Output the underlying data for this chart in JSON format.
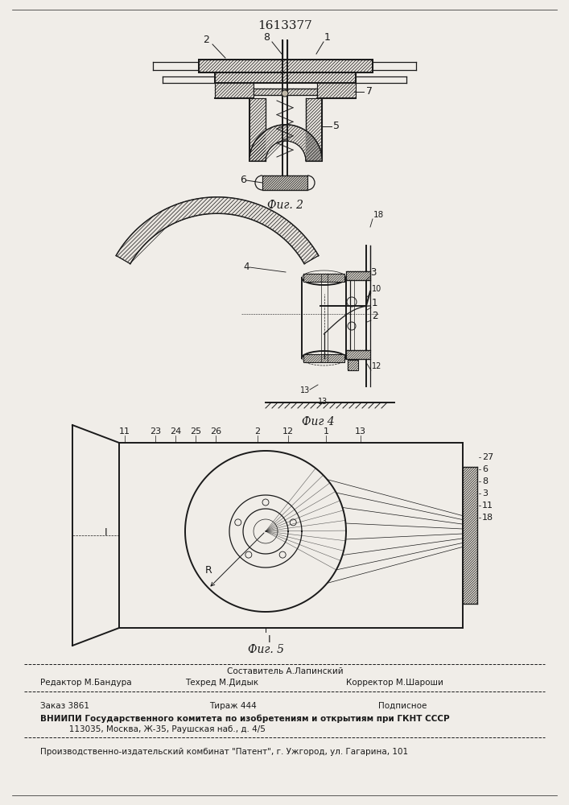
{
  "patent_number": "1613377",
  "fig2_label": "Фиг. 2",
  "fig4_label": "Фиг 4",
  "fig5_label": "Фиг. 5",
  "bg_color": "#f0ede8",
  "line_color": "#1a1a1a",
  "footer_sestavitel": "Составитель А.Лапинский",
  "footer_row1_left": "Редактор М.Бандура",
  "footer_row1_mid": "Техред М.Дидык",
  "footer_row1_right": "Корректор М.Шароши",
  "footer_zakaz": "Заказ 3861",
  "footer_tirazh": "Тираж 444",
  "footer_podpisnoe": "Подписное",
  "footer_vniipи": "ВНИИПИ Государственного комитета по изобретениям и открытиям при ГКНТ СССР",
  "footer_addr": "           113035, Москва, Ж-35, Раушская наб., д. 4/5",
  "footer_patent": "Производственно-издательский комбинат \"Патент\", г. Ужгород, ул. Гагарина, 101"
}
